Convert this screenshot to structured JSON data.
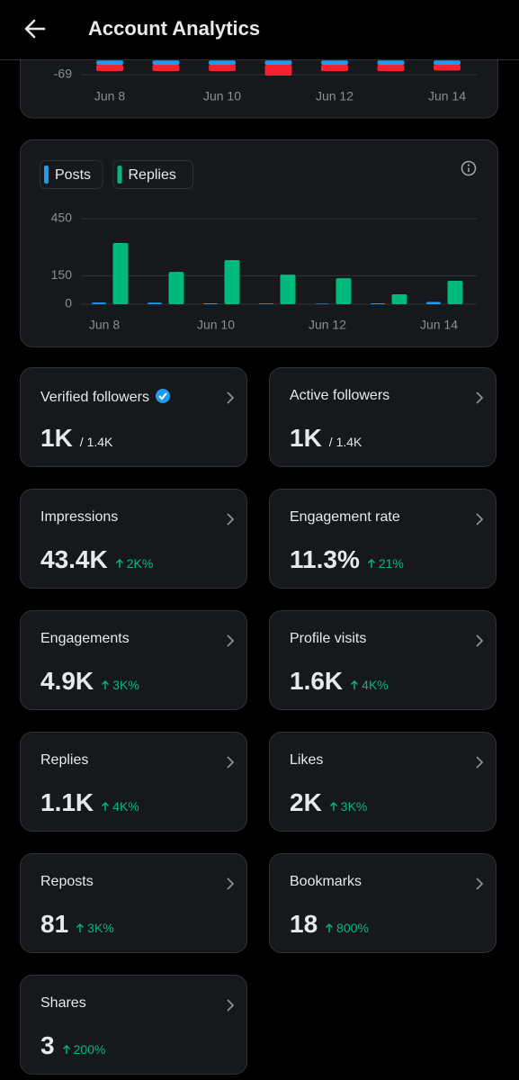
{
  "header": {
    "title": "Account Analytics"
  },
  "chart_data": [
    {
      "type": "bar",
      "stacked": true,
      "categories": [
        "Jun 8",
        null,
        "Jun 10",
        null,
        "Jun 12",
        null,
        "Jun 14"
      ],
      "series": [
        {
          "color": "#1d9bf0",
          "values": [
            30,
            30,
            30,
            30,
            30,
            30,
            30
          ]
        },
        {
          "color": "#f4212e",
          "values": [
            -44,
            -44,
            -44,
            -75,
            -44,
            -44,
            -40
          ]
        }
      ],
      "ylim": [
        -69,
        69
      ],
      "yticks": [
        -69
      ],
      "grid": true
    },
    {
      "type": "bar",
      "categories": [
        "Jun 8",
        null,
        "Jun 10",
        null,
        "Jun 12",
        null,
        "Jun 14"
      ],
      "series": [
        {
          "name": "Posts",
          "color": "#1d9bf0",
          "values": [
            9,
            8,
            5,
            4,
            3,
            5,
            12
          ]
        },
        {
          "name": "Replies",
          "color": "#00ba7c",
          "values": [
            322,
            170,
            232,
            156,
            137,
            52,
            123
          ]
        }
      ],
      "ylim": [
        0,
        450
      ],
      "yticks": [
        0,
        150,
        450
      ],
      "grid": true,
      "legend": "top-left"
    }
  ],
  "cards": [
    {
      "label": "Verified followers",
      "value": "1K",
      "total": "/ 1.4K",
      "verified": true
    },
    {
      "label": "Active followers",
      "value": "1K",
      "total": "/ 1.4K"
    },
    {
      "label": "Impressions",
      "value": "43.4K",
      "change": "2K%"
    },
    {
      "label": "Engagement rate",
      "value": "11.3%",
      "change": "21%"
    },
    {
      "label": "Engagements",
      "value": "4.9K",
      "change": "3K%"
    },
    {
      "label": "Profile visits",
      "value": "1.6K",
      "change": "4K%"
    },
    {
      "label": "Replies",
      "value": "1.1K",
      "change": "4K%"
    },
    {
      "label": "Likes",
      "value": "2K",
      "change": "3K%"
    },
    {
      "label": "Reposts",
      "value": "81",
      "change": "3K%"
    },
    {
      "label": "Bookmarks",
      "value": "18",
      "change": "800%"
    },
    {
      "label": "Shares",
      "value": "3",
      "change": "200%"
    }
  ]
}
